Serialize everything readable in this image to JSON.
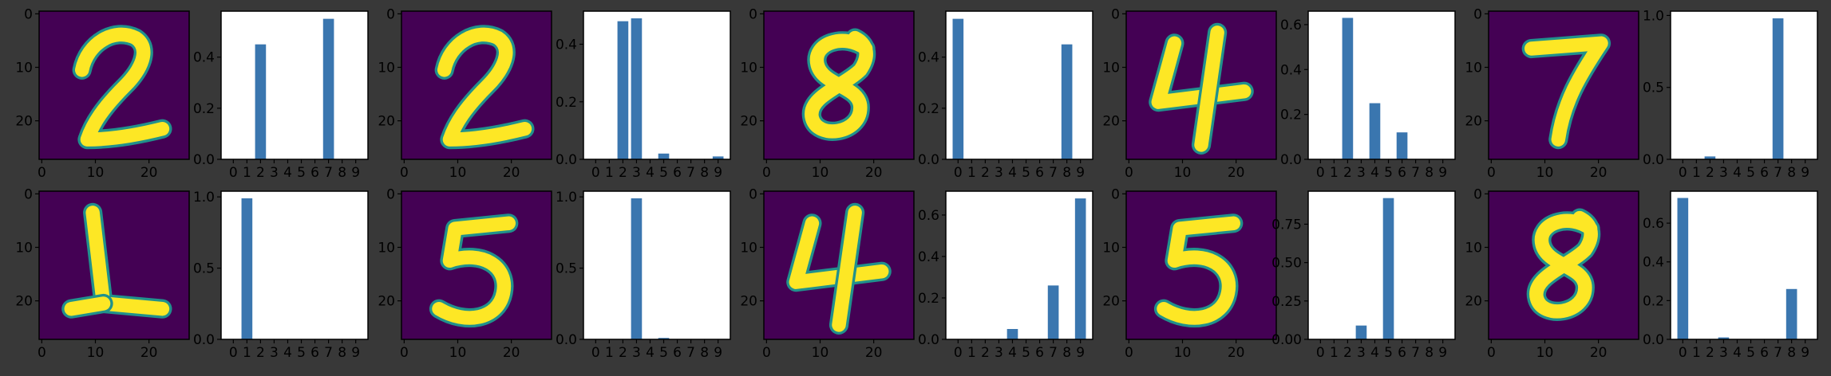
{
  "theme": {
    "background": "#383838",
    "digit_background": "#440154",
    "digit_mid": "#21918c",
    "digit_foreground": "#fde725",
    "bar_color": "#3a76af",
    "axes_facecolor": "#ffffff",
    "axis_color": "#000000"
  },
  "chart_data": [
    {
      "type": "heatmap",
      "title": "",
      "xticks": [
        "0",
        "10",
        "20"
      ],
      "yticks": [
        "0",
        "10",
        "20"
      ],
      "digit": "2"
    },
    {
      "type": "bar",
      "categories": [
        "0",
        "1",
        "2",
        "3",
        "4",
        "5",
        "6",
        "7",
        "8",
        "9"
      ],
      "values": [
        0,
        0,
        0.45,
        0,
        0,
        0,
        0,
        0.55,
        0,
        0
      ],
      "ylim": [
        0,
        0.58
      ],
      "yticks": [
        {
          "v": 0.0,
          "label": "0.0"
        },
        {
          "v": 0.2,
          "label": "0.2"
        },
        {
          "v": 0.4,
          "label": "0.4"
        }
      ]
    },
    {
      "type": "heatmap",
      "title": "",
      "xticks": [
        "0",
        "10",
        "20"
      ],
      "yticks": [
        "0",
        "10",
        "20"
      ],
      "digit": "2"
    },
    {
      "type": "bar",
      "categories": [
        "0",
        "1",
        "2",
        "3",
        "4",
        "5",
        "6",
        "7",
        "8",
        "9"
      ],
      "values": [
        0,
        0,
        0.48,
        0.49,
        0,
        0.02,
        0,
        0,
        0,
        0.01
      ],
      "ylim": [
        0,
        0.515
      ],
      "yticks": [
        {
          "v": 0.0,
          "label": "0.0"
        },
        {
          "v": 0.2,
          "label": "0.2"
        },
        {
          "v": 0.4,
          "label": "0.4"
        }
      ]
    },
    {
      "type": "heatmap",
      "title": "",
      "xticks": [
        "0",
        "10",
        "20"
      ],
      "yticks": [
        "0",
        "10",
        "20"
      ],
      "digit": "8"
    },
    {
      "type": "bar",
      "categories": [
        "0",
        "1",
        "2",
        "3",
        "4",
        "5",
        "6",
        "7",
        "8",
        "9"
      ],
      "values": [
        0.55,
        0,
        0,
        0,
        0,
        0,
        0,
        0,
        0.45,
        0
      ],
      "ylim": [
        0,
        0.58
      ],
      "yticks": [
        {
          "v": 0.0,
          "label": "0.0"
        },
        {
          "v": 0.2,
          "label": "0.2"
        },
        {
          "v": 0.4,
          "label": "0.4"
        }
      ]
    },
    {
      "type": "heatmap",
      "title": "",
      "xticks": [
        "0",
        "10",
        "20"
      ],
      "yticks": [
        "0",
        "10",
        "20"
      ],
      "digit": "4"
    },
    {
      "type": "bar",
      "categories": [
        "0",
        "1",
        "2",
        "3",
        "4",
        "5",
        "6",
        "7",
        "8",
        "9"
      ],
      "values": [
        0,
        0,
        0.63,
        0,
        0.25,
        0,
        0.12,
        0,
        0,
        0
      ],
      "ylim": [
        0,
        0.66
      ],
      "yticks": [
        {
          "v": 0.0,
          "label": "0.0"
        },
        {
          "v": 0.2,
          "label": "0.2"
        },
        {
          "v": 0.4,
          "label": "0.4"
        },
        {
          "v": 0.6,
          "label": "0.6"
        }
      ]
    },
    {
      "type": "heatmap",
      "title": "",
      "xticks": [
        "0",
        "10",
        "20"
      ],
      "yticks": [
        "0",
        "10",
        "20"
      ],
      "digit": "7"
    },
    {
      "type": "bar",
      "categories": [
        "0",
        "1",
        "2",
        "3",
        "4",
        "5",
        "6",
        "7",
        "8",
        "9"
      ],
      "values": [
        0,
        0,
        0.02,
        0,
        0,
        0,
        0,
        0.98,
        0,
        0
      ],
      "ylim": [
        0,
        1.03
      ],
      "yticks": [
        {
          "v": 0.0,
          "label": "0.0"
        },
        {
          "v": 0.5,
          "label": "0.5"
        },
        {
          "v": 1.0,
          "label": "1.0"
        }
      ]
    },
    {
      "type": "heatmap",
      "title": "",
      "xticks": [
        "0",
        "10",
        "20"
      ],
      "yticks": [
        "0",
        "10",
        "20"
      ],
      "digit": "1"
    },
    {
      "type": "bar",
      "categories": [
        "0",
        "1",
        "2",
        "3",
        "4",
        "5",
        "6",
        "7",
        "8",
        "9"
      ],
      "values": [
        0,
        0.99,
        0,
        0,
        0,
        0,
        0,
        0,
        0,
        0
      ],
      "ylim": [
        0,
        1.04
      ],
      "yticks": [
        {
          "v": 0.0,
          "label": "0.0"
        },
        {
          "v": 0.5,
          "label": "0.5"
        },
        {
          "v": 1.0,
          "label": "1.0"
        }
      ]
    },
    {
      "type": "heatmap",
      "title": "",
      "xticks": [
        "0",
        "10",
        "20"
      ],
      "yticks": [
        "0",
        "10",
        "20"
      ],
      "digit": "5"
    },
    {
      "type": "bar",
      "categories": [
        "0",
        "1",
        "2",
        "3",
        "4",
        "5",
        "6",
        "7",
        "8",
        "9"
      ],
      "values": [
        0,
        0,
        0,
        0.99,
        0,
        0.01,
        0,
        0,
        0,
        0
      ],
      "ylim": [
        0,
        1.04
      ],
      "yticks": [
        {
          "v": 0.0,
          "label": "0.0"
        },
        {
          "v": 0.5,
          "label": "0.5"
        },
        {
          "v": 1.0,
          "label": "1.0"
        }
      ]
    },
    {
      "type": "heatmap",
      "title": "",
      "xticks": [
        "0",
        "10",
        "20"
      ],
      "yticks": [
        "0",
        "10",
        "20"
      ],
      "digit": "4"
    },
    {
      "type": "bar",
      "categories": [
        "0",
        "1",
        "2",
        "3",
        "4",
        "5",
        "6",
        "7",
        "8",
        "9"
      ],
      "values": [
        0,
        0,
        0,
        0,
        0.05,
        0,
        0,
        0.26,
        0,
        0.68
      ],
      "ylim": [
        0,
        0.715
      ],
      "yticks": [
        {
          "v": 0.0,
          "label": "0.0"
        },
        {
          "v": 0.2,
          "label": "0.2"
        },
        {
          "v": 0.4,
          "label": "0.4"
        },
        {
          "v": 0.6,
          "label": "0.6"
        }
      ]
    },
    {
      "type": "heatmap",
      "title": "",
      "xticks": [
        "0",
        "10",
        "20"
      ],
      "yticks": [
        "0",
        "10",
        "20"
      ],
      "digit": "5"
    },
    {
      "type": "bar",
      "categories": [
        "0",
        "1",
        "2",
        "3",
        "4",
        "5",
        "6",
        "7",
        "8",
        "9"
      ],
      "values": [
        0,
        0,
        0,
        0.09,
        0,
        0.92,
        0,
        0,
        0,
        0
      ],
      "ylim": [
        0,
        0.965
      ],
      "yticks": [
        {
          "v": 0.0,
          "label": "0.00"
        },
        {
          "v": 0.25,
          "label": "0.25"
        },
        {
          "v": 0.5,
          "label": "0.50"
        },
        {
          "v": 0.75,
          "label": "0.75"
        }
      ]
    },
    {
      "type": "heatmap",
      "title": "",
      "xticks": [
        "0",
        "10",
        "20"
      ],
      "yticks": [
        "0",
        "10",
        "20"
      ],
      "digit": "8"
    },
    {
      "type": "bar",
      "categories": [
        "0",
        "1",
        "2",
        "3",
        "4",
        "5",
        "6",
        "7",
        "8",
        "9"
      ],
      "values": [
        0.73,
        0,
        0,
        0.01,
        0,
        0,
        0,
        0,
        0.26,
        0
      ],
      "ylim": [
        0,
        0.765
      ],
      "yticks": [
        {
          "v": 0.0,
          "label": "0.0"
        },
        {
          "v": 0.2,
          "label": "0.2"
        },
        {
          "v": 0.4,
          "label": "0.4"
        },
        {
          "v": 0.6,
          "label": "0.6"
        }
      ]
    }
  ]
}
